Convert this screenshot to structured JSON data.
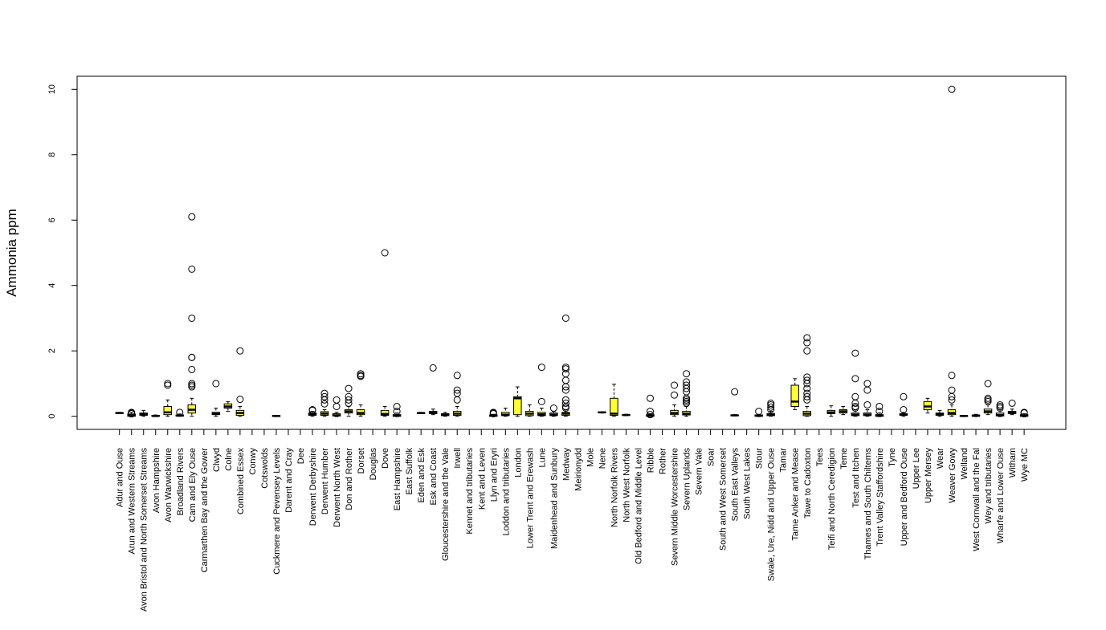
{
  "chart_data": {
    "type": "boxplot",
    "title": "",
    "xlabel": "",
    "ylabel": "Ammonia ppm",
    "ylim": [
      -0.4,
      10.4
    ],
    "y_ticks": [
      0,
      2,
      4,
      6,
      8,
      10
    ],
    "y_tick_labels": [
      "0",
      "2",
      "4",
      "6",
      "8",
      "10"
    ],
    "colors": {
      "box_fill": "#ffff33",
      "stroke": "#000000",
      "background": "#ffffff"
    },
    "categories": [
      "Adur and Ouse",
      "Arun and Western Streams",
      "Avon Bristol and North Somerset Streams",
      "Avon Hampshire",
      "Avon Warwickshire",
      "Broadland Rivers",
      "Cam and Ely Ouse",
      "Carmarthen Bay and the Gower",
      "Clwyd",
      "Colne",
      "Combined Essex",
      "Conwy",
      "Cotswolds",
      "Cuckmere and Pevensey Levels",
      "Darent and Cray",
      "Dee",
      "Derwent Derbyshire",
      "Derwent Humber",
      "Derwent North West",
      "Don and Rother",
      "Dorset",
      "Douglas",
      "Dove",
      "East Hampshire",
      "East Suffolk",
      "Eden and Esk",
      "Esk and Coast",
      "Gloucestershire and the Vale",
      "Irwell",
      "Kennet and tributaries",
      "Kent and Leven",
      "Llyn and Eryri",
      "Loddon and tributaries",
      "London",
      "Lower Trent and Erewash",
      "Lune",
      "Maidenhead and Sunbury",
      "Medway",
      "Meirionydd",
      "Mole",
      "Nene",
      "North Norfolk Rivers",
      "North West Norfolk",
      "Old Bedford and Middle Level",
      "Ribble",
      "Rother",
      "Severn Middle Worcestershire",
      "Severn Uplands",
      "Severn Vale",
      "Soar",
      "South and West Somerset",
      "South East Valleys",
      "South West Lakes",
      "Stour",
      "Swale, Ure, Nidd and Upper Ouse",
      "Tamar",
      "Tame Anker and Mease",
      "Tawe to Cadoxton",
      "Tees",
      "Teifi and North Ceredigion",
      "Teme",
      "Test and Itchen",
      "Thames and South Chilterns",
      "Trent Valley Staffordshire",
      "Tyne",
      "Upper and Bedford Ouse",
      "Upper Lee",
      "Upper Mersey",
      "Wear",
      "Weaver Gowy",
      "Welland",
      "West Cornwall and the Fal",
      "Wey and tributaries",
      "Wharfe and Lower Ouse",
      "Witham",
      "Wye MC"
    ],
    "boxes": [
      {
        "min": 0.08,
        "q1": 0.09,
        "median": 0.1,
        "q3": 0.11,
        "max": 0.12,
        "outliers": []
      },
      {
        "min": -0.02,
        "q1": 0.0,
        "median": 0.03,
        "q3": 0.07,
        "max": 0.12,
        "outliers": [
          0.08,
          0.1,
          0.12
        ]
      },
      {
        "min": 0.0,
        "q1": 0.03,
        "median": 0.07,
        "q3": 0.1,
        "max": 0.18,
        "outliers": []
      },
      {
        "min": -0.01,
        "q1": 0.0,
        "median": 0.01,
        "q3": 0.03,
        "max": 0.04,
        "outliers": []
      },
      {
        "min": 0.0,
        "q1": 0.05,
        "median": 0.12,
        "q3": 0.3,
        "max": 0.5,
        "outliers": [
          0.95,
          1.0
        ]
      },
      {
        "min": 0.0,
        "q1": 0.01,
        "median": 0.02,
        "q3": 0.04,
        "max": 0.07,
        "outliers": [
          0.12
        ]
      },
      {
        "min": 0.0,
        "q1": 0.1,
        "median": 0.2,
        "q3": 0.35,
        "max": 0.55,
        "outliers": [
          6.1,
          4.5,
          3.0,
          1.8,
          1.8,
          1.43,
          1.0,
          0.95,
          0.9
        ]
      },
      null,
      {
        "min": 0.0,
        "q1": 0.05,
        "median": 0.08,
        "q3": 0.12,
        "max": 0.25,
        "outliers": [
          1.0
        ]
      },
      {
        "min": 0.15,
        "q1": 0.25,
        "median": 0.3,
        "q3": 0.38,
        "max": 0.45,
        "outliers": []
      },
      {
        "min": 0.0,
        "q1": 0.03,
        "median": 0.1,
        "q3": 0.18,
        "max": 0.3,
        "outliers": [
          2.0,
          0.52
        ]
      },
      null,
      null,
      {
        "min": -0.01,
        "q1": 0.0,
        "median": 0.01,
        "q3": 0.02,
        "max": 0.03,
        "outliers": []
      },
      null,
      null,
      {
        "min": 0.0,
        "q1": 0.03,
        "median": 0.06,
        "q3": 0.1,
        "max": 0.15,
        "outliers": [
          0.18,
          0.2
        ]
      },
      {
        "min": 0.0,
        "q1": 0.03,
        "median": 0.08,
        "q3": 0.14,
        "max": 0.2,
        "outliers": [
          0.7,
          0.6,
          0.5,
          0.38
        ]
      },
      {
        "min": -0.01,
        "q1": 0.01,
        "median": 0.03,
        "q3": 0.08,
        "max": 0.12,
        "outliers": [
          0.5,
          0.3
        ]
      },
      {
        "min": 0.0,
        "q1": 0.1,
        "median": 0.15,
        "q3": 0.2,
        "max": 0.3,
        "outliers": [
          0.85,
          0.6,
          0.5,
          0.4
        ]
      },
      {
        "min": 0.0,
        "q1": 0.05,
        "median": 0.1,
        "q3": 0.2,
        "max": 0.35,
        "outliers": [
          1.3,
          1.25,
          1.22
        ]
      },
      null,
      {
        "min": 0.0,
        "q1": 0.03,
        "median": 0.07,
        "q3": 0.18,
        "max": 0.3,
        "outliers": [
          5.0
        ]
      },
      {
        "min": -0.01,
        "q1": 0.0,
        "median": 0.02,
        "q3": 0.05,
        "max": 0.1,
        "outliers": [
          0.3,
          0.15
        ]
      },
      null,
      {
        "min": 0.08,
        "q1": 0.09,
        "median": 0.1,
        "q3": 0.11,
        "max": 0.12,
        "outliers": []
      },
      {
        "min": 0.05,
        "q1": 0.08,
        "median": 0.12,
        "q3": 0.15,
        "max": 0.22,
        "outliers": [
          1.48
        ]
      },
      {
        "min": 0.0,
        "q1": 0.02,
        "median": 0.05,
        "q3": 0.08,
        "max": 0.12,
        "outliers": []
      },
      {
        "min": 0.0,
        "q1": 0.03,
        "median": 0.08,
        "q3": 0.15,
        "max": 0.3,
        "outliers": [
          1.25,
          0.8,
          0.7,
          0.5
        ]
      },
      null,
      null,
      {
        "min": -0.01,
        "q1": 0.0,
        "median": 0.02,
        "q3": 0.04,
        "max": 0.06,
        "outliers": [
          0.12,
          0.1,
          0.08
        ]
      },
      {
        "min": 0.0,
        "q1": 0.02,
        "median": 0.05,
        "q3": 0.12,
        "max": 0.25,
        "outliers": []
      },
      {
        "min": 0.0,
        "q1": 0.05,
        "median": 0.55,
        "q3": 0.6,
        "max": 0.9,
        "outliers": []
      },
      {
        "min": 0.0,
        "q1": 0.02,
        "median": 0.08,
        "q3": 0.15,
        "max": 0.35,
        "outliers": []
      },
      {
        "min": 0.0,
        "q1": 0.02,
        "median": 0.06,
        "q3": 0.12,
        "max": 0.25,
        "outliers": [
          1.5,
          0.45
        ]
      },
      {
        "min": 0.0,
        "q1": 0.02,
        "median": 0.05,
        "q3": 0.1,
        "max": 0.15,
        "outliers": [
          0.25
        ]
      },
      {
        "min": 0.0,
        "q1": 0.03,
        "median": 0.08,
        "q3": 0.12,
        "max": 0.2,
        "outliers": [
          3.0,
          1.5,
          1.45,
          1.3,
          1.1,
          0.9,
          0.8,
          0.5,
          0.4,
          0.3,
          0.25
        ]
      },
      null,
      null,
      {
        "min": 0.1,
        "q1": 0.11,
        "median": 0.12,
        "q3": 0.13,
        "max": 0.14,
        "outliers": []
      },
      {
        "min": 0.0,
        "q1": 0.03,
        "median": 0.08,
        "q3": 0.55,
        "max": 0.98,
        "outliers": []
      },
      {
        "min": 0.02,
        "q1": 0.03,
        "median": 0.04,
        "q3": 0.05,
        "max": 0.06,
        "outliers": []
      },
      null,
      {
        "min": -0.01,
        "q1": 0.0,
        "median": 0.02,
        "q3": 0.05,
        "max": 0.08,
        "outliers": [
          0.55,
          0.15,
          0.05
        ]
      },
      null,
      {
        "min": 0.0,
        "q1": 0.05,
        "median": 0.1,
        "q3": 0.18,
        "max": 0.35,
        "outliers": [
          0.95,
          0.65
        ]
      },
      {
        "min": 0.0,
        "q1": 0.04,
        "median": 0.08,
        "q3": 0.15,
        "max": 0.3,
        "outliers": [
          1.3,
          1.05,
          0.95,
          0.85,
          0.75,
          0.55,
          0.5,
          0.45,
          0.4
        ]
      },
      null,
      null,
      null,
      {
        "min": 0.01,
        "q1": 0.02,
        "median": 0.03,
        "q3": 0.04,
        "max": 0.05,
        "outliers": [
          0.75
        ]
      },
      null,
      {
        "min": -0.01,
        "q1": 0.0,
        "median": 0.02,
        "q3": 0.04,
        "max": 0.06,
        "outliers": [
          0.15
        ]
      },
      {
        "min": 0.0,
        "q1": 0.02,
        "median": 0.05,
        "q3": 0.08,
        "max": 0.15,
        "outliers": [
          0.4,
          0.35,
          0.28,
          0.2
        ]
      },
      null,
      {
        "min": 0.2,
        "q1": 0.3,
        "median": 0.45,
        "q3": 0.95,
        "max": 1.15,
        "outliers": []
      },
      {
        "min": 0.0,
        "q1": 0.02,
        "median": 0.08,
        "q3": 0.15,
        "max": 0.3,
        "outliers": [
          2.4,
          2.25,
          2.0,
          1.2,
          1.1,
          1.0,
          0.85,
          0.7,
          0.6,
          0.5
        ]
      },
      null,
      {
        "min": 0.0,
        "q1": 0.08,
        "median": 0.12,
        "q3": 0.18,
        "max": 0.32,
        "outliers": []
      },
      {
        "min": 0.05,
        "q1": 0.1,
        "median": 0.15,
        "q3": 0.2,
        "max": 0.3,
        "outliers": []
      },
      {
        "min": 0.0,
        "q1": 0.02,
        "median": 0.05,
        "q3": 0.1,
        "max": 0.2,
        "outliers": [
          1.93,
          1.15,
          0.6,
          0.4,
          0.3,
          0.25
        ]
      },
      {
        "min": 0.0,
        "q1": 0.02,
        "median": 0.05,
        "q3": 0.1,
        "max": 0.2,
        "outliers": [
          1.0,
          0.8,
          0.35
        ]
      },
      {
        "min": -0.01,
        "q1": 0.0,
        "median": 0.02,
        "q3": 0.05,
        "max": 0.1,
        "outliers": [
          0.3,
          0.15
        ]
      },
      null,
      {
        "min": 0.0,
        "q1": 0.03,
        "median": 0.05,
        "q3": 0.08,
        "max": 0.12,
        "outliers": [
          0.6,
          0.2
        ]
      },
      null,
      {
        "min": 0.1,
        "q1": 0.2,
        "median": 0.3,
        "q3": 0.45,
        "max": 0.55,
        "outliers": []
      },
      {
        "min": 0.0,
        "q1": 0.03,
        "median": 0.06,
        "q3": 0.1,
        "max": 0.18,
        "outliers": []
      },
      {
        "min": 0.0,
        "q1": 0.05,
        "median": 0.1,
        "q3": 0.2,
        "max": 0.35,
        "outliers": [
          10.0,
          1.25,
          0.8,
          0.6,
          0.5
        ]
      },
      {
        "min": -0.01,
        "q1": 0.0,
        "median": 0.01,
        "q3": 0.02,
        "max": 0.03,
        "outliers": []
      },
      {
        "min": -0.01,
        "q1": 0.0,
        "median": 0.02,
        "q3": 0.04,
        "max": 0.06,
        "outliers": []
      },
      {
        "min": 0.05,
        "q1": 0.1,
        "median": 0.15,
        "q3": 0.22,
        "max": 0.35,
        "outliers": [
          1.0,
          0.55,
          0.5,
          0.45
        ]
      },
      {
        "min": -0.01,
        "q1": 0.01,
        "median": 0.04,
        "q3": 0.1,
        "max": 0.2,
        "outliers": [
          0.35,
          0.3,
          0.25
        ]
      },
      {
        "min": 0.05,
        "q1": 0.08,
        "median": 0.12,
        "q3": 0.15,
        "max": 0.22,
        "outliers": [
          0.4
        ]
      },
      {
        "min": -0.02,
        "q1": 0.0,
        "median": 0.02,
        "q3": 0.05,
        "max": 0.08,
        "outliers": [
          0.1,
          0.12
        ]
      }
    ]
  }
}
